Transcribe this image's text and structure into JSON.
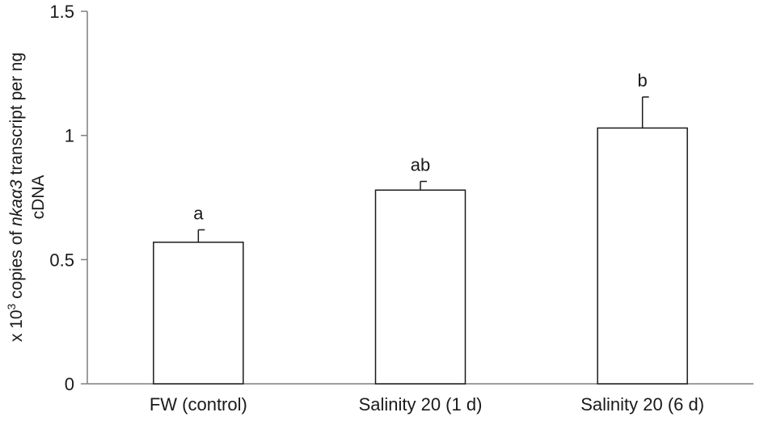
{
  "chart_data": {
    "type": "bar",
    "title": "",
    "xlabel": "",
    "ylabel": {
      "line1_prefix": "x 10",
      "line1_superscript": "3",
      "line1_middle": " copies of ",
      "line1_italic": "nkaα3",
      "line1_suffix": " transcript per ng",
      "line2": "cDNA"
    },
    "ylim": [
      0,
      1.5
    ],
    "yticks": [
      0,
      0.5,
      1,
      1.5
    ],
    "ytick_labels": [
      "0",
      "0.5",
      "1",
      "1.5"
    ],
    "categories": [
      "FW (control)",
      "Salinity 20 (1 d)",
      "Salinity 20 (6 d)"
    ],
    "values": [
      0.57,
      0.78,
      1.03
    ],
    "errors": [
      0.05,
      0.035,
      0.125
    ],
    "significance_labels": [
      "a",
      "ab",
      "b"
    ],
    "grid": false,
    "bar_fill": "#ffffff",
    "bar_stroke": "#1a1a1a",
    "axis_color": "#7f7f7f"
  }
}
